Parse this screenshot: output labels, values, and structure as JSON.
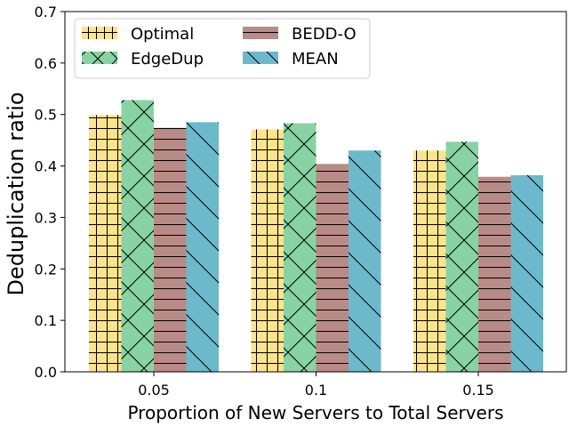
{
  "chart_data": {
    "type": "bar",
    "xlabel": "Proportion of New Servers to Total Servers",
    "ylabel": "Deduplication ratio",
    "categories": [
      "0.05",
      "0.1",
      "0.15"
    ],
    "ylim": [
      0,
      0.7
    ],
    "yticks": [
      "0.0",
      "0.1",
      "0.2",
      "0.3",
      "0.4",
      "0.5",
      "0.6",
      "0.7"
    ],
    "grid": false,
    "legend_position": "top-left",
    "series": [
      {
        "name": "Optimal",
        "values": [
          0.499,
          0.471,
          0.43
        ],
        "color": "#fde38e",
        "hatch": "grid"
      },
      {
        "name": "EdgeDup",
        "values": [
          0.528,
          0.483,
          0.447
        ],
        "color": "#88d3a3",
        "hatch": "cross"
      },
      {
        "name": "BEDD-O",
        "values": [
          0.474,
          0.404,
          0.379
        ],
        "color": "#b88b87",
        "hatch": "horizontal"
      },
      {
        "name": "MEAN",
        "values": [
          0.485,
          0.43,
          0.382
        ],
        "color": "#6cb9cc",
        "hatch": "backslash"
      }
    ]
  }
}
